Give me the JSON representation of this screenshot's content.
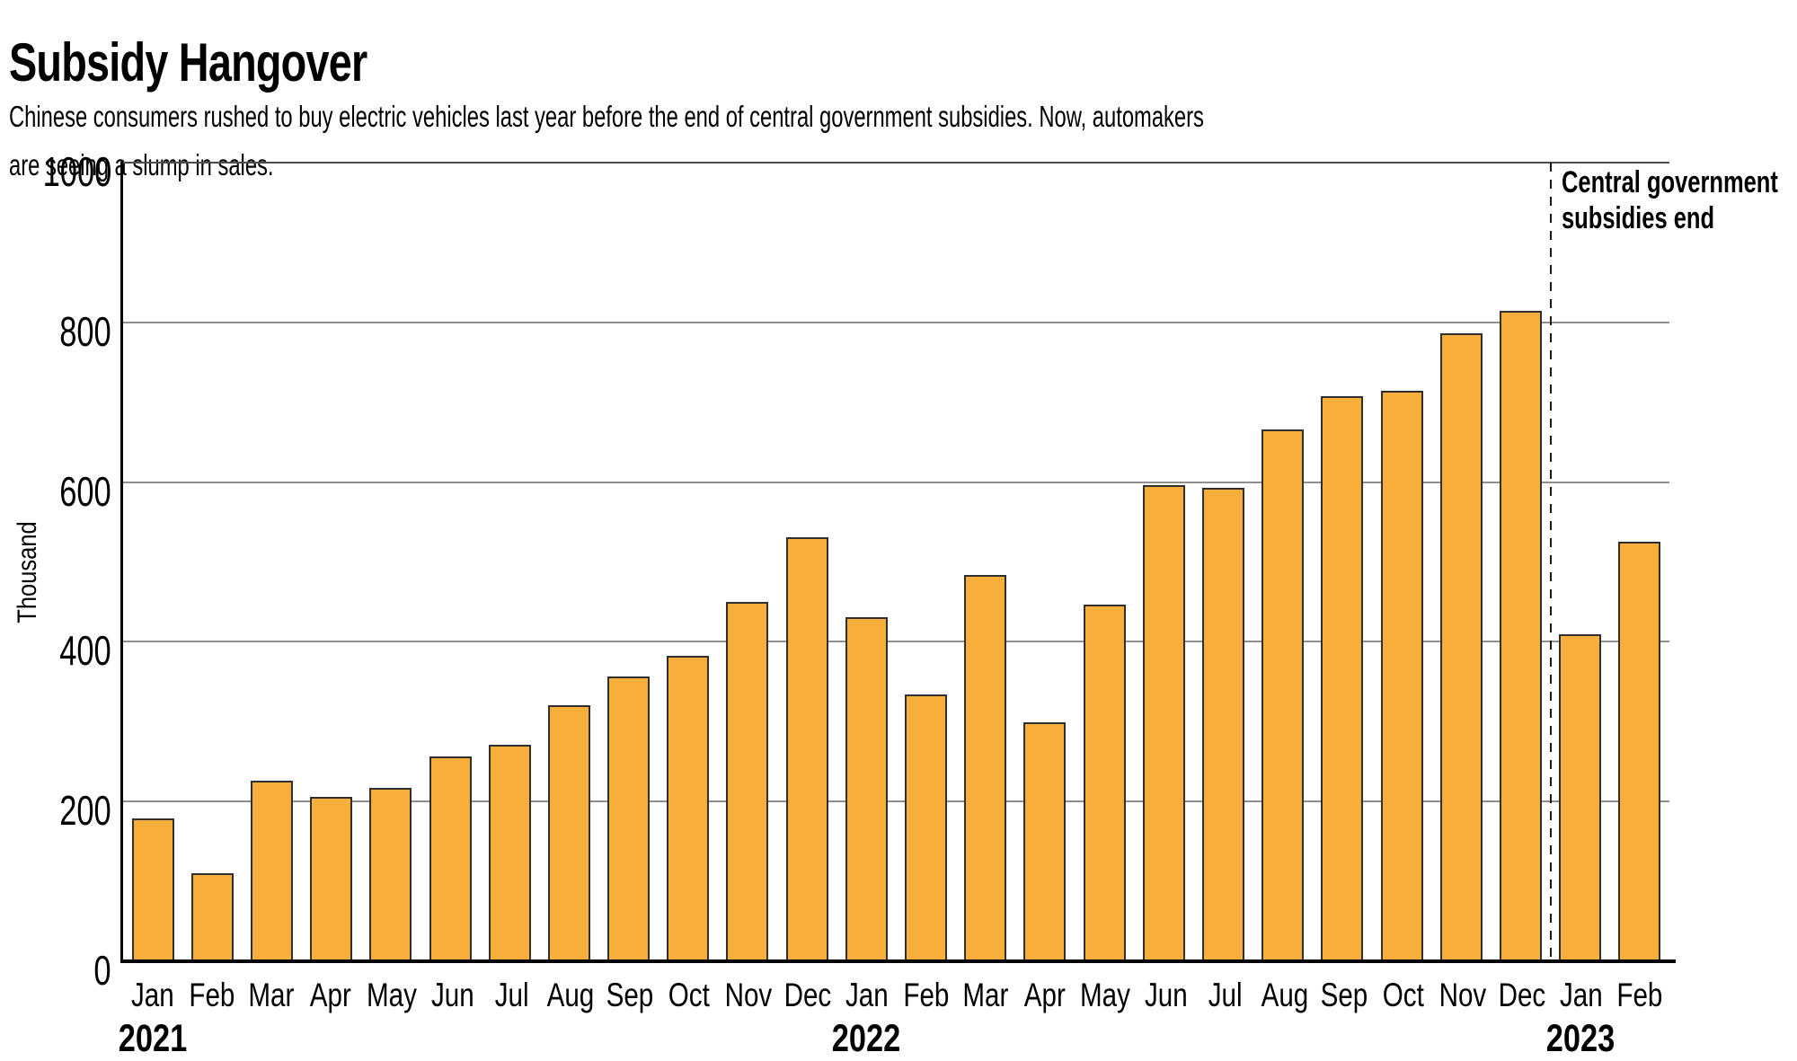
{
  "header": {
    "title": "Subsidy Hangover",
    "subtitle_line1": "Chinese consumers rushed to buy electric vehicles last year before the end of central government subsidies. Now, automakers",
    "subtitle_line2": "are seeing a slump in sales."
  },
  "chart_data": {
    "type": "bar",
    "title": "Subsidy Hangover",
    "y_axis_title": "Thousand",
    "ylim": [
      0,
      1000
    ],
    "y_ticks": [
      0,
      200,
      400,
      600,
      800,
      1000
    ],
    "grid": "horizontal",
    "bar_color": "#F7AE3B",
    "bar_border_color": "#2F2F2F",
    "annotation": {
      "line1": "Central government",
      "line2": "subsidies end",
      "dashed_line_after_index": 23
    },
    "year_labels": [
      {
        "index": 0,
        "label": "2021"
      },
      {
        "index": 12,
        "label": "2022"
      },
      {
        "index": 24,
        "label": "2023"
      }
    ],
    "points": [
      {
        "month": "Jan",
        "year": 2021,
        "value": 179
      },
      {
        "month": "Feb",
        "year": 2021,
        "value": 110
      },
      {
        "month": "Mar",
        "year": 2021,
        "value": 226
      },
      {
        "month": "Apr",
        "year": 2021,
        "value": 206
      },
      {
        "month": "May",
        "year": 2021,
        "value": 217
      },
      {
        "month": "Jun",
        "year": 2021,
        "value": 256
      },
      {
        "month": "Jul",
        "year": 2021,
        "value": 271
      },
      {
        "month": "Aug",
        "year": 2021,
        "value": 321
      },
      {
        "month": "Sep",
        "year": 2021,
        "value": 357
      },
      {
        "month": "Oct",
        "year": 2021,
        "value": 383
      },
      {
        "month": "Nov",
        "year": 2021,
        "value": 450
      },
      {
        "month": "Dec",
        "year": 2021,
        "value": 531
      },
      {
        "month": "Jan",
        "year": 2022,
        "value": 431
      },
      {
        "month": "Feb",
        "year": 2022,
        "value": 334
      },
      {
        "month": "Mar",
        "year": 2022,
        "value": 484
      },
      {
        "month": "Apr",
        "year": 2022,
        "value": 299
      },
      {
        "month": "May",
        "year": 2022,
        "value": 447
      },
      {
        "month": "Jun",
        "year": 2022,
        "value": 596
      },
      {
        "month": "Jul",
        "year": 2022,
        "value": 593
      },
      {
        "month": "Aug",
        "year": 2022,
        "value": 666
      },
      {
        "month": "Sep",
        "year": 2022,
        "value": 708
      },
      {
        "month": "Oct",
        "year": 2022,
        "value": 714
      },
      {
        "month": "Nov",
        "year": 2022,
        "value": 786
      },
      {
        "month": "Dec",
        "year": 2022,
        "value": 814
      },
      {
        "month": "Jan",
        "year": 2023,
        "value": 409
      },
      {
        "month": "Feb",
        "year": 2023,
        "value": 525
      }
    ]
  }
}
